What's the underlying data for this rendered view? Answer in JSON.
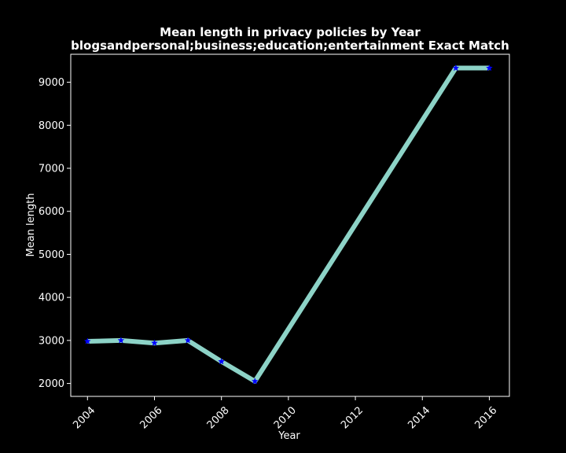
{
  "chart_data": {
    "type": "line",
    "title": "Mean length in privacy policies by Year",
    "subtitle": "blogsandpersonal;business;education;entertainment Exact Match",
    "xlabel": "Year",
    "ylabel": "Mean length",
    "xlim": [
      2003.5,
      2016.6
    ],
    "ylim": [
      1700,
      9650
    ],
    "xticks": [
      2004,
      2006,
      2008,
      2010,
      2012,
      2014,
      2016
    ],
    "yticks": [
      2000,
      3000,
      4000,
      5000,
      6000,
      7000,
      8000,
      9000
    ],
    "grid": false,
    "series": [
      {
        "x": [
          2004,
          2005,
          2006,
          2007,
          2008,
          2009,
          2015,
          2016
        ],
        "y": [
          2980,
          3000,
          2940,
          3000,
          2510,
          2050,
          9330,
          9330
        ],
        "line_color": "#8dd3c7",
        "marker": "star",
        "marker_color": "#0000ff"
      }
    ],
    "colors": {
      "background": "#000000",
      "foreground": "#ffffff"
    }
  }
}
